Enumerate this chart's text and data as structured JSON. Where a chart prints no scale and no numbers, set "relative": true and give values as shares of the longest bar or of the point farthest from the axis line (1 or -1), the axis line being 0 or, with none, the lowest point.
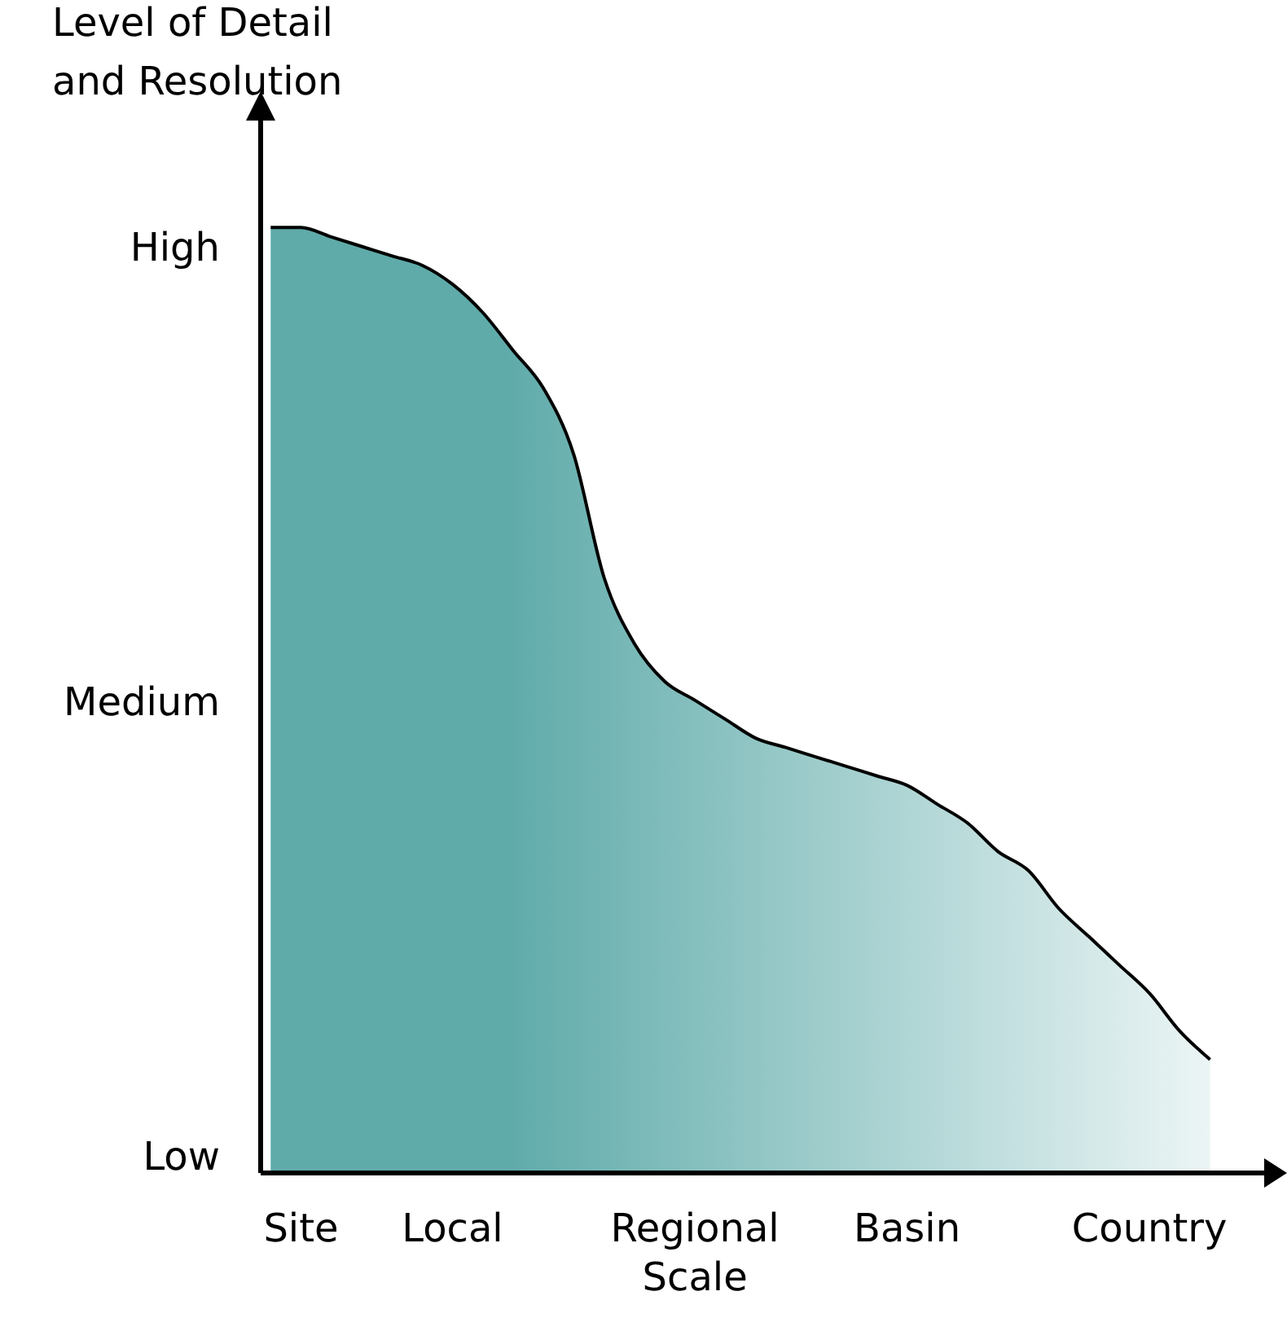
{
  "chart_data": {
    "type": "area",
    "ylabel": "Level of Detail and Resolution",
    "relative": true,
    "categories": [
      null,
      "Site",
      null,
      null,
      null,
      null,
      "Local",
      null,
      null,
      null,
      null,
      null,
      null,
      null,
      "Regional Scale",
      null,
      null,
      null,
      null,
      null,
      null,
      "Basin",
      null,
      null,
      null,
      null,
      null,
      null,
      null,
      "Country",
      null,
      null
    ],
    "series": [
      {
        "color": "#5fabaa",
        "values": [
          1.0,
          1.0,
          0.99,
          0.98,
          0.97,
          0.96,
          0.94,
          0.91,
          0.87,
          0.83,
          0.76,
          0.63,
          0.56,
          0.52,
          0.5,
          0.48,
          0.46,
          0.45,
          0.44,
          0.43,
          0.42,
          0.41,
          0.39,
          0.37,
          0.34,
          0.32,
          0.28,
          0.25,
          0.22,
          0.19,
          0.15,
          0.12
        ]
      }
    ],
    "annotations": [
      "High",
      "Medium",
      "Low"
    ],
    "grid": false,
    "legend": false
  }
}
